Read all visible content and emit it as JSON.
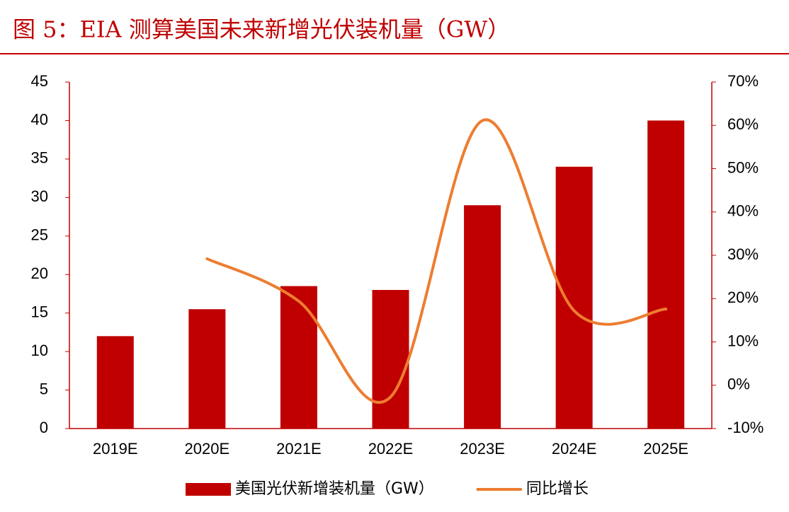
{
  "chart_data": {
    "type": "bar_line",
    "title": "图 5：EIA 测算美国未来新增光伏装机量（GW）",
    "categories": [
      "2019E",
      "2020E",
      "2021E",
      "2022E",
      "2023E",
      "2024E",
      "2025E"
    ],
    "series": [
      {
        "name": "美国光伏新增装机量（GW）",
        "type": "bar",
        "color": "#c00000",
        "values": [
          12,
          15.5,
          18.5,
          18,
          29,
          34,
          40
        ]
      },
      {
        "name": "同比增长",
        "type": "line",
        "axis": "y2",
        "color": "#ed7d31",
        "values": [
          null,
          29.2,
          19.4,
          -2.7,
          61.1,
          17.2,
          17.6
        ]
      }
    ],
    "ylim": [
      0,
      45
    ],
    "yticks": [
      0,
      5,
      10,
      15,
      20,
      25,
      30,
      35,
      40,
      45
    ],
    "y2lim": [
      -10,
      70
    ],
    "y2ticks": [
      {
        "value": -10,
        "label": "-10%"
      },
      {
        "value": 0,
        "label": "0%"
      },
      {
        "value": 10,
        "label": "10%"
      },
      {
        "value": 20,
        "label": "20%"
      },
      {
        "value": 30,
        "label": "30%"
      },
      {
        "value": 40,
        "label": "40%"
      },
      {
        "value": 50,
        "label": "50%"
      },
      {
        "value": 60,
        "label": "60%"
      },
      {
        "value": 70,
        "label": "70%"
      }
    ],
    "grid": false,
    "legend": "bottom"
  }
}
